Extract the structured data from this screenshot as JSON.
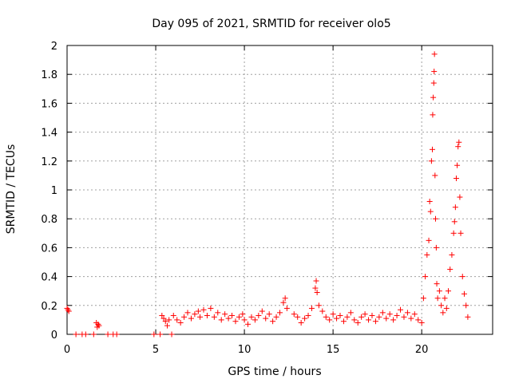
{
  "chart_data": {
    "type": "scatter",
    "title": "Day 095 of 2021, SRMTID for receiver olo5",
    "xlabel": "GPS time / hours",
    "ylabel": "SRMTID / TECUs",
    "xlim": [
      0,
      24
    ],
    "ylim": [
      0,
      2
    ],
    "xticks": [
      0,
      5,
      10,
      15,
      20
    ],
    "xtick_labels": [
      "0",
      "5",
      "10",
      "15",
      "20"
    ],
    "yticks": [
      0,
      0.2,
      0.4,
      0.6,
      0.8,
      1,
      1.2,
      1.4,
      1.6,
      1.8,
      2
    ],
    "ytick_labels": [
      "0",
      "0.2",
      "0.4",
      "0.6",
      "0.8",
      "1",
      "1.2",
      "1.4",
      "1.6",
      "1.8",
      "2"
    ],
    "grid": true,
    "marker": "+",
    "color": "#ff0000",
    "series": [
      {
        "name": "SRMTID",
        "points": [
          [
            0.0,
            0.18
          ],
          [
            0.05,
            0.17
          ],
          [
            0.1,
            0.16
          ],
          [
            0.5,
            0.0
          ],
          [
            0.85,
            0.0
          ],
          [
            1.05,
            0.0
          ],
          [
            1.5,
            0.0
          ],
          [
            1.65,
            0.08
          ],
          [
            1.7,
            0.05
          ],
          [
            1.75,
            0.07
          ],
          [
            1.8,
            0.06
          ],
          [
            2.3,
            0.0
          ],
          [
            2.6,
            0.0
          ],
          [
            2.8,
            0.0
          ],
          [
            4.9,
            0.0
          ],
          [
            5.25,
            0.0
          ],
          [
            5.9,
            0.0
          ],
          [
            5.35,
            0.13
          ],
          [
            5.45,
            0.11
          ],
          [
            5.55,
            0.09
          ],
          [
            5.65,
            0.06
          ],
          [
            5.75,
            0.1
          ],
          [
            6.0,
            0.13
          ],
          [
            6.2,
            0.1
          ],
          [
            6.4,
            0.08
          ],
          [
            6.6,
            0.12
          ],
          [
            6.8,
            0.15
          ],
          [
            7.0,
            0.11
          ],
          [
            7.2,
            0.14
          ],
          [
            7.4,
            0.16
          ],
          [
            7.5,
            0.12
          ],
          [
            7.7,
            0.17
          ],
          [
            7.9,
            0.13
          ],
          [
            8.1,
            0.18
          ],
          [
            8.3,
            0.12
          ],
          [
            8.5,
            0.15
          ],
          [
            8.7,
            0.1
          ],
          [
            8.9,
            0.14
          ],
          [
            9.1,
            0.11
          ],
          [
            9.3,
            0.13
          ],
          [
            9.5,
            0.09
          ],
          [
            9.7,
            0.12
          ],
          [
            9.9,
            0.14
          ],
          [
            10.0,
            0.1
          ],
          [
            10.2,
            0.07
          ],
          [
            10.4,
            0.12
          ],
          [
            10.6,
            0.1
          ],
          [
            10.8,
            0.13
          ],
          [
            11.0,
            0.16
          ],
          [
            11.2,
            0.11
          ],
          [
            11.4,
            0.14
          ],
          [
            11.6,
            0.09
          ],
          [
            11.8,
            0.12
          ],
          [
            12.0,
            0.15
          ],
          [
            12.2,
            0.22
          ],
          [
            12.3,
            0.25
          ],
          [
            12.4,
            0.18
          ],
          [
            12.8,
            0.14
          ],
          [
            13.0,
            0.12
          ],
          [
            13.2,
            0.08
          ],
          [
            13.4,
            0.11
          ],
          [
            13.6,
            0.13
          ],
          [
            13.8,
            0.18
          ],
          [
            14.0,
            0.32
          ],
          [
            14.05,
            0.37
          ],
          [
            14.1,
            0.29
          ],
          [
            14.2,
            0.2
          ],
          [
            14.4,
            0.16
          ],
          [
            14.6,
            0.12
          ],
          [
            14.8,
            0.1
          ],
          [
            15.0,
            0.14
          ],
          [
            15.2,
            0.11
          ],
          [
            15.4,
            0.13
          ],
          [
            15.6,
            0.09
          ],
          [
            15.8,
            0.12
          ],
          [
            16.0,
            0.15
          ],
          [
            16.2,
            0.1
          ],
          [
            16.4,
            0.08
          ],
          [
            16.6,
            0.12
          ],
          [
            16.8,
            0.14
          ],
          [
            17.0,
            0.1
          ],
          [
            17.2,
            0.13
          ],
          [
            17.4,
            0.09
          ],
          [
            17.6,
            0.12
          ],
          [
            17.8,
            0.15
          ],
          [
            18.0,
            0.11
          ],
          [
            18.2,
            0.14
          ],
          [
            18.4,
            0.1
          ],
          [
            18.6,
            0.13
          ],
          [
            18.8,
            0.17
          ],
          [
            19.0,
            0.12
          ],
          [
            19.2,
            0.15
          ],
          [
            19.4,
            0.11
          ],
          [
            19.6,
            0.14
          ],
          [
            19.8,
            0.1
          ],
          [
            20.0,
            0.08
          ],
          [
            20.1,
            0.25
          ],
          [
            20.2,
            0.4
          ],
          [
            20.3,
            0.55
          ],
          [
            20.4,
            0.65
          ],
          [
            20.45,
            0.92
          ],
          [
            20.5,
            0.85
          ],
          [
            20.55,
            1.2
          ],
          [
            20.6,
            1.28
          ],
          [
            20.62,
            1.52
          ],
          [
            20.65,
            1.64
          ],
          [
            20.68,
            1.74
          ],
          [
            20.7,
            1.82
          ],
          [
            20.72,
            1.94
          ],
          [
            20.75,
            1.1
          ],
          [
            20.78,
            0.8
          ],
          [
            20.82,
            0.6
          ],
          [
            20.85,
            0.35
          ],
          [
            20.9,
            0.25
          ],
          [
            21.0,
            0.3
          ],
          [
            21.1,
            0.2
          ],
          [
            21.2,
            0.15
          ],
          [
            21.3,
            0.25
          ],
          [
            21.4,
            0.18
          ],
          [
            21.5,
            0.3
          ],
          [
            21.6,
            0.45
          ],
          [
            21.7,
            0.55
          ],
          [
            21.8,
            0.7
          ],
          [
            21.85,
            0.78
          ],
          [
            21.9,
            0.88
          ],
          [
            21.95,
            1.08
          ],
          [
            22.0,
            1.17
          ],
          [
            22.05,
            1.3
          ],
          [
            22.1,
            1.33
          ],
          [
            22.15,
            0.95
          ],
          [
            22.2,
            0.7
          ],
          [
            22.3,
            0.4
          ],
          [
            22.4,
            0.28
          ],
          [
            22.5,
            0.2
          ],
          [
            22.6,
            0.12
          ]
        ]
      }
    ]
  }
}
